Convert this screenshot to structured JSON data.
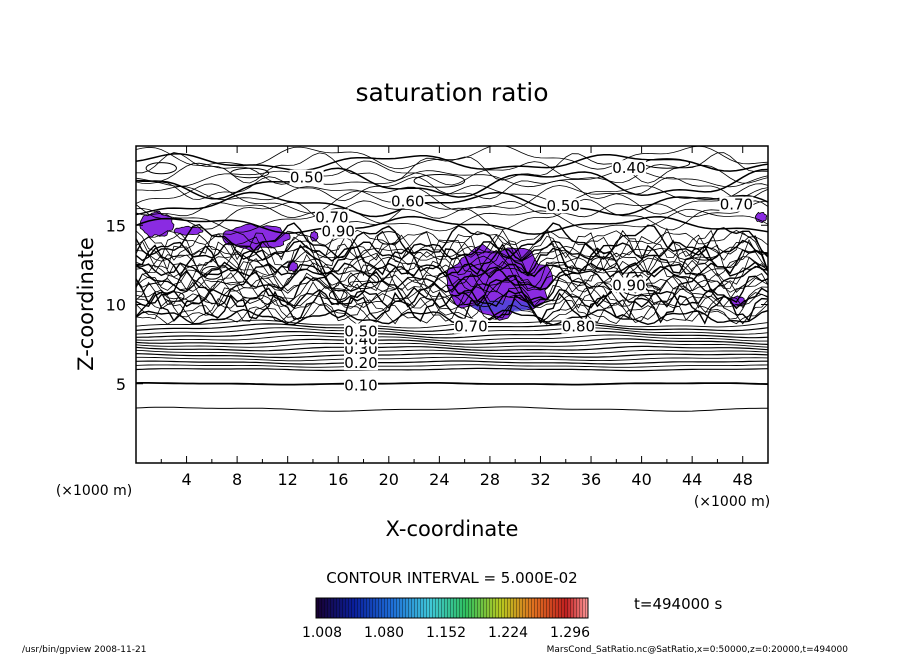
{
  "chart_data": {
    "type": "contour",
    "title": "saturation ratio",
    "xlabel": "X-coordinate",
    "ylabel": "Z-coordinate",
    "x_unit": "(×1000 m)",
    "y_unit": "(×1000 m)",
    "xlim": [
      0,
      50
    ],
    "ylim": [
      0,
      20
    ],
    "x_ticks": [
      4,
      8,
      12,
      16,
      20,
      24,
      28,
      32,
      36,
      40,
      44,
      48
    ],
    "y_ticks": [
      5,
      10,
      15
    ],
    "contour_interval_label": "CONTOUR INTERVAL = 5.000E-02",
    "time_label": "t=494000 s",
    "colorbar_ticks": [
      "1.008",
      "1.080",
      "1.152",
      "1.224",
      "1.296"
    ],
    "contour_labels": [
      {
        "text": "0.10",
        "x": 17.8,
        "z": 4.9
      },
      {
        "text": "0.20",
        "x": 17.8,
        "z": 6.3
      },
      {
        "text": "0.30",
        "x": 17.8,
        "z": 7.2
      },
      {
        "text": "0.40",
        "x": 17.8,
        "z": 7.8
      },
      {
        "text": "0.50",
        "x": 17.8,
        "z": 8.3
      },
      {
        "text": "0.70",
        "x": 26.5,
        "z": 8.6
      },
      {
        "text": "0.80",
        "x": 35.0,
        "z": 8.6
      },
      {
        "text": "0.50",
        "x": 13.5,
        "z": 18.0
      },
      {
        "text": "0.70",
        "x": 15.5,
        "z": 15.5
      },
      {
        "text": "0.90",
        "x": 16.0,
        "z": 14.6
      },
      {
        "text": "0.60",
        "x": 21.5,
        "z": 16.5
      },
      {
        "text": "0.50",
        "x": 33.8,
        "z": 16.2
      },
      {
        "text": "0.40",
        "x": 39.0,
        "z": 18.6
      },
      {
        "text": "0.70",
        "x": 47.5,
        "z": 16.3
      },
      {
        "text": "0.90",
        "x": 39.0,
        "z": 11.2
      }
    ],
    "supersaturated_regions": [
      {
        "x": [
          0.3,
          3.0
        ],
        "z": [
          14.3,
          15.8
        ]
      },
      {
        "x": [
          3.0,
          5.3
        ],
        "z": [
          14.4,
          14.9
        ]
      },
      {
        "x": [
          6.8,
          12.2
        ],
        "z": [
          13.5,
          15.0
        ]
      },
      {
        "x": [
          24.5,
          33.0
        ],
        "z": [
          9.3,
          13.6
        ]
      },
      {
        "x": [
          49.0,
          49.9
        ],
        "z": [
          15.2,
          15.8
        ]
      },
      {
        "x": [
          12.0,
          12.8
        ],
        "z": [
          12.1,
          12.7
        ]
      },
      {
        "x": [
          13.8,
          14.4
        ],
        "z": [
          14.0,
          14.6
        ]
      },
      {
        "x": [
          47.0,
          48.2
        ],
        "z": [
          9.9,
          10.5
        ]
      }
    ],
    "colors": {
      "supersat_fill": "#8a2be2",
      "supersat_core": "#4a48d8",
      "colorbar": [
        "#180030",
        "#0a1f9c",
        "#1e6ed8",
        "#40c8d8",
        "#30c060",
        "#b8c820",
        "#e07020",
        "#c02020",
        "#ff9a9a"
      ]
    }
  },
  "footer": {
    "left": "/usr/bin/gpview   2008-11-21",
    "right": "MarsCond_SatRatio.nc@SatRatio,x=0:50000,z=0:20000,t=494000"
  }
}
